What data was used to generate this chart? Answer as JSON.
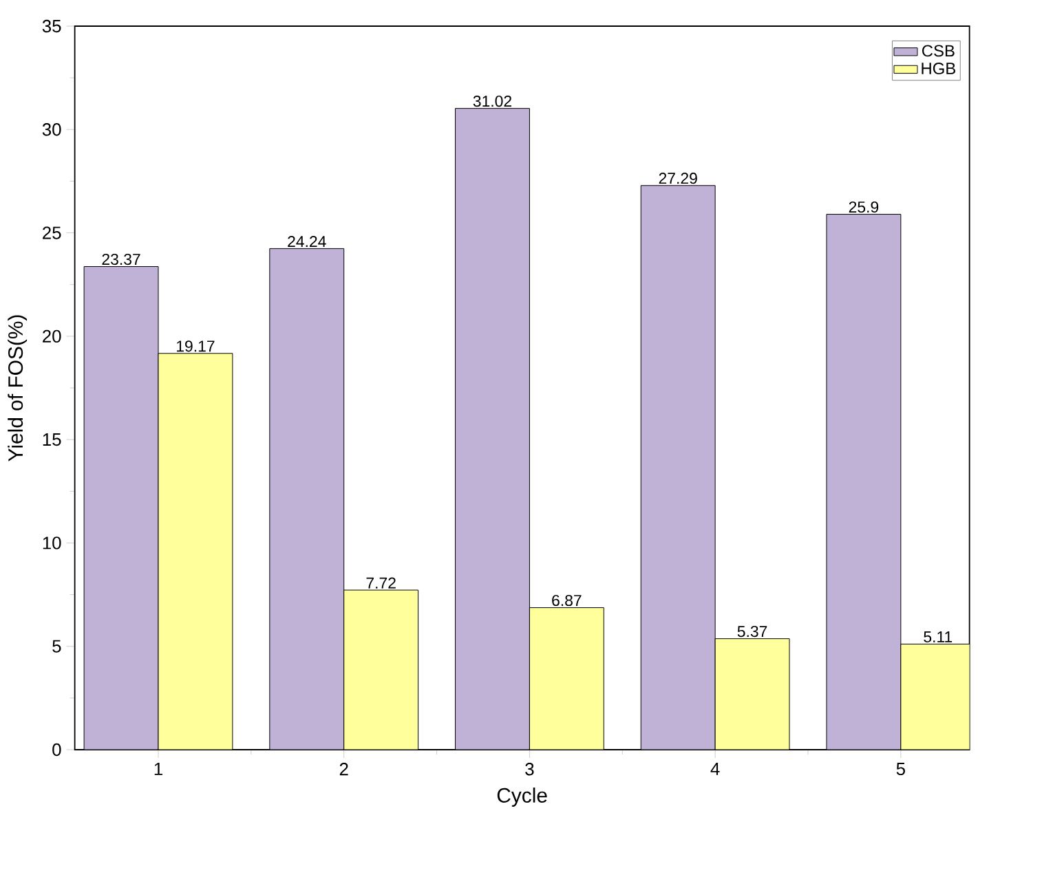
{
  "chart_data": {
    "type": "bar",
    "xlabel": "Cycle",
    "ylabel": "Yield of FOS(%)",
    "categories": [
      "1",
      "2",
      "3",
      "4",
      "5"
    ],
    "series": [
      {
        "name": "CSB",
        "color": "#c0b1d6",
        "values": [
          23.37,
          24.24,
          31.02,
          27.29,
          25.9
        ]
      },
      {
        "name": "HGB",
        "color": "#ffff9c",
        "values": [
          19.17,
          7.72,
          6.87,
          5.37,
          5.11
        ]
      }
    ],
    "ylim": [
      0,
      35
    ],
    "yticks": [
      0,
      5,
      10,
      15,
      20,
      25,
      30,
      35
    ],
    "data_labels": true,
    "legend": "top right",
    "grid": false
  }
}
